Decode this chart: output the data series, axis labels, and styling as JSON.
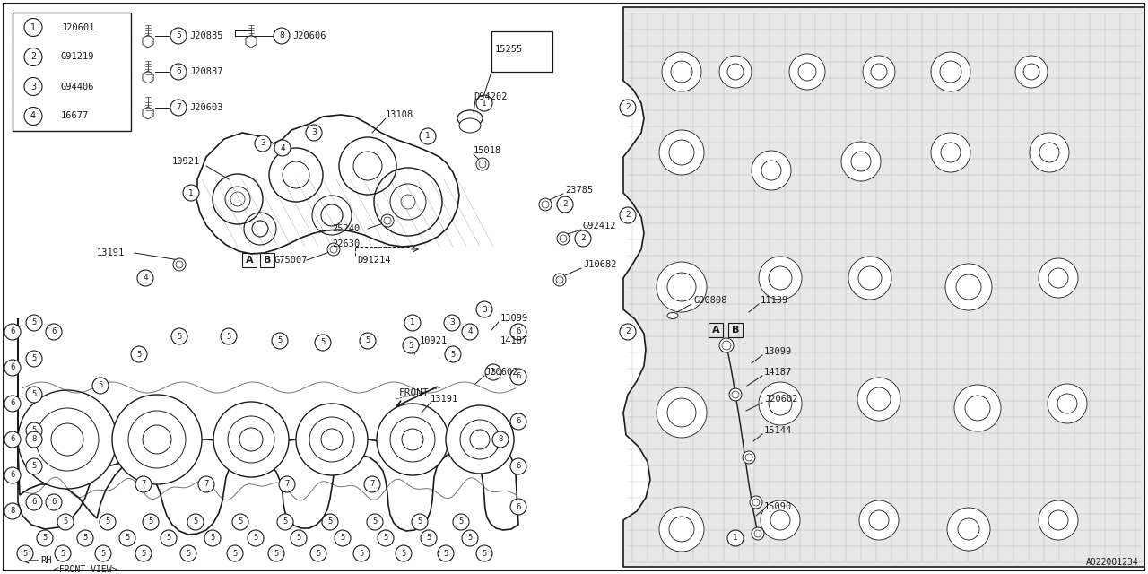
{
  "bg_color": "#ffffff",
  "line_color": "#1a1a1a",
  "fig_width": 12.8,
  "fig_height": 6.4,
  "dpi": 100,
  "diagram_code": "A022001234",
  "legend_items": [
    {
      "num": "1",
      "code": "J20601"
    },
    {
      "num": "2",
      "code": "G91219"
    },
    {
      "num": "3",
      "code": "G94406"
    },
    {
      "num": "4",
      "code": "16677"
    }
  ]
}
